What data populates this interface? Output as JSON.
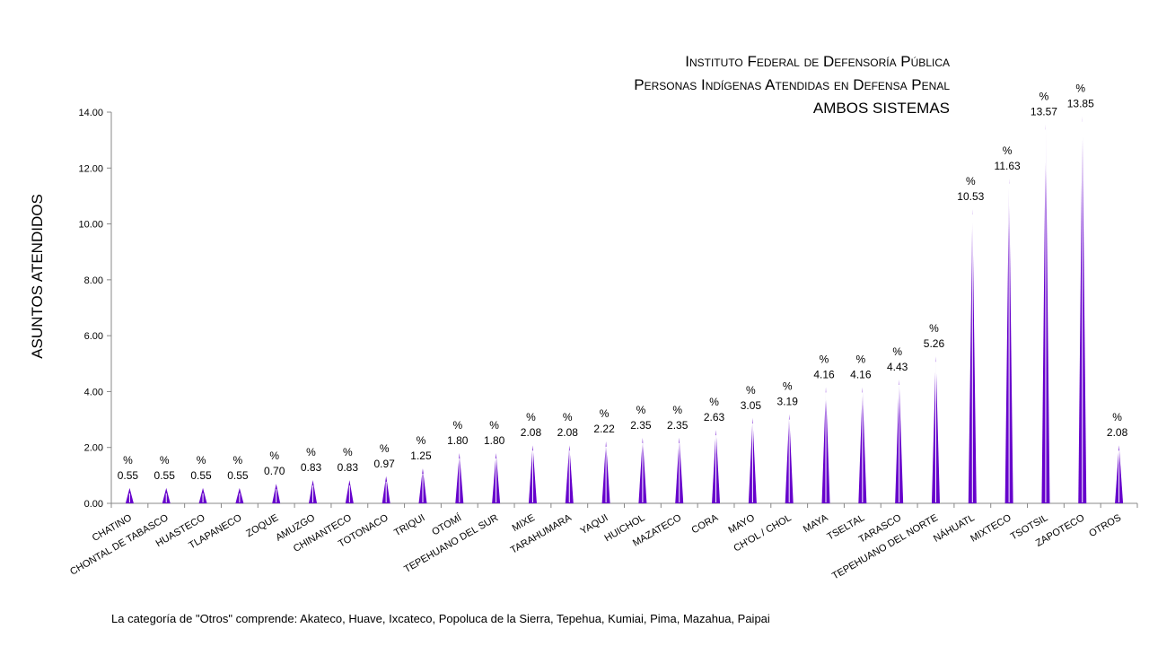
{
  "chart_data": {
    "type": "bar",
    "title_lines": [
      "Instituto Federal de Defensoría Pública",
      "Personas Indígenas  Atendidas en Defensa Penal",
      "AMBOS SISTEMAS"
    ],
    "ylabel": "ASUNTOS ATENDIDOS",
    "ylim": [
      0,
      14
    ],
    "yticks": [
      "0.00",
      "2.00",
      "4.00",
      "6.00",
      "8.00",
      "10.00",
      "12.00",
      "14.00"
    ],
    "label_prefix": "%",
    "categories": [
      "CHATINO",
      "CHONTAL DE TABASCO",
      "HUASTECO",
      "TLAPANECO",
      "ZOQUE",
      "AMUZGO",
      "CHINANTECO",
      "TOTONACO",
      "TRIQUI",
      "OTOMÍ",
      "TEPEHUANO DEL SUR",
      "MIXE",
      "TARAHUMARA",
      "YAQUI",
      "HUICHOL",
      "MAZATECO",
      "CORA",
      "MAYO",
      "CH'OL / CHOL",
      "MAYA",
      "TSELTAL",
      "TARASCO",
      "TEPEHUANO DEL NORTE",
      "NÁHUATL",
      "MIXTECO",
      "TSOTSIL",
      "ZAPOTECO",
      "OTROS"
    ],
    "values": [
      0.55,
      0.55,
      0.55,
      0.55,
      0.7,
      0.83,
      0.83,
      0.97,
      1.25,
      1.8,
      1.8,
      2.08,
      2.08,
      2.22,
      2.35,
      2.35,
      2.63,
      3.05,
      3.19,
      4.16,
      4.16,
      4.43,
      5.26,
      10.53,
      11.63,
      13.57,
      13.85,
      2.08
    ],
    "data_labels": [
      "0.55",
      "0.55",
      "0.55",
      "0.55",
      "0.70",
      "0.83",
      "0.83",
      "0.97",
      "1.25",
      "1.80",
      "1.80",
      "2.08",
      "2.08",
      "2.22",
      "2.35",
      "2.35",
      "2.63",
      "3.05",
      "3.19",
      "4.16",
      "4.16",
      "4.43",
      "5.26",
      "10.53",
      "11.63",
      "13.57",
      "13.85",
      "2.08"
    ],
    "bar_color": "#6600CC",
    "footnote": "La categoría de \"Otros\" comprende:  Akateco, Huave, Ixcateco, Popoluca de la Sierra, Tepehua, Kumiai, Pima, Mazahua, Paipai"
  }
}
